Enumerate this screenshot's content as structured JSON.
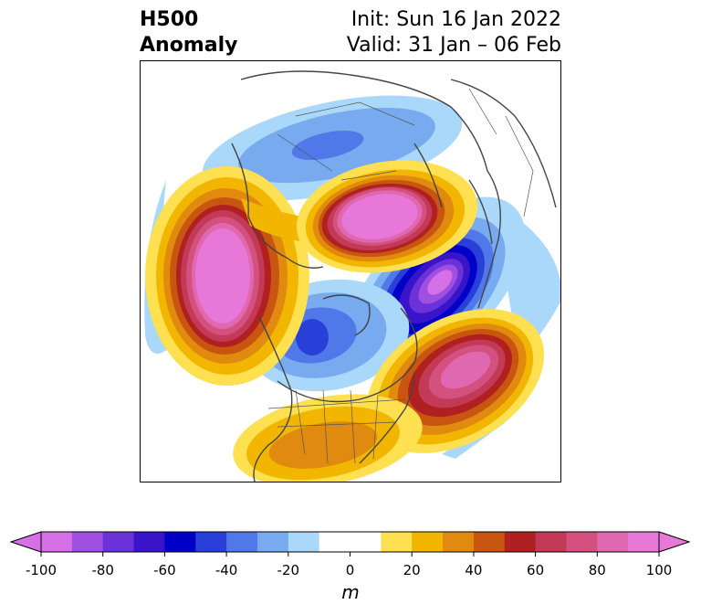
{
  "header": {
    "title_line1": "H500",
    "title_line2": "Anomaly",
    "init_text": "Init: Sun 16 Jan 2022",
    "valid_text": "Valid: 31 Jan – 06 Feb"
  },
  "colorbar": {
    "ticks": [
      "-100",
      "-80",
      "-60",
      "-40",
      "-20",
      "0",
      "20",
      "40",
      "60",
      "80",
      "100"
    ],
    "units": "m",
    "colors": [
      "#d670e6",
      "#a050e0",
      "#6a32d8",
      "#3a14c8",
      "#0000c8",
      "#2840d8",
      "#5078e8",
      "#78aaf0",
      "#aad8fa",
      "#ffffff",
      "#ffffff",
      "#ffe050",
      "#f2b600",
      "#e08a10",
      "#c85510",
      "#b02020",
      "#c23a58",
      "#d4507e",
      "#e068b0",
      "#e878d8"
    ]
  },
  "map": {
    "projection": "north-polar-stereographic",
    "variable": "500 hPa geopotential height anomaly",
    "features": [
      {
        "sign": "positive",
        "peak": 100,
        "region": "North Pacific / Gulf of Alaska"
      },
      {
        "sign": "positive",
        "peak": 100,
        "region": "Siberia / Arctic Russia"
      },
      {
        "sign": "positive",
        "peak": 80,
        "region": "North Atlantic"
      },
      {
        "sign": "positive",
        "peak": 40,
        "region": "Southern United States"
      },
      {
        "sign": "negative",
        "peak": -100,
        "region": "Scandinavia / Northern Europe"
      },
      {
        "sign": "negative",
        "peak": -60,
        "region": "Canada / Hudson Bay"
      },
      {
        "sign": "negative",
        "peak": -40,
        "region": "Central Asia"
      }
    ]
  }
}
